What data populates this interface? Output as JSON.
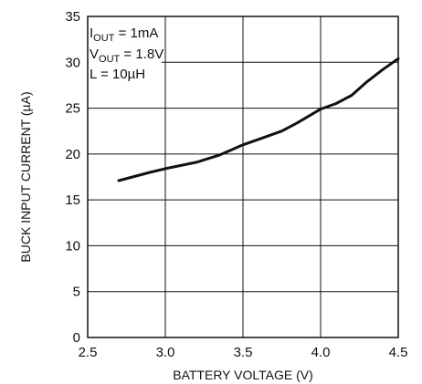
{
  "chart_data": {
    "type": "line",
    "xlabel": "BATTERY VOLTAGE (V)",
    "ylabel": "BUCK INPUT CURRENT (µA)",
    "xlim": [
      2.5,
      4.5
    ],
    "ylim": [
      0,
      35
    ],
    "x_ticks": [
      "2.5",
      "3.0",
      "3.5",
      "4.0",
      "4.5"
    ],
    "y_ticks": [
      "0",
      "5",
      "10",
      "15",
      "20",
      "25",
      "30",
      "35"
    ],
    "grid": true,
    "annotation": {
      "line1": {
        "prefix": "I",
        "sub": "OUT",
        "rest": " = 1mA"
      },
      "line2": {
        "prefix": "V",
        "sub": "OUT",
        "rest": " = 1.8V"
      },
      "line3": "L = 10µH"
    },
    "series": [
      {
        "color": "#111111",
        "x": [
          2.7,
          2.9,
          3.0,
          3.2,
          3.35,
          3.5,
          3.6,
          3.75,
          3.85,
          4.0,
          4.1,
          4.2,
          4.3,
          4.4,
          4.5
        ],
        "y": [
          17.1,
          18.0,
          18.4,
          19.1,
          19.9,
          21.0,
          21.6,
          22.5,
          23.4,
          24.9,
          25.5,
          26.4,
          27.9,
          29.2,
          30.4
        ]
      }
    ]
  }
}
